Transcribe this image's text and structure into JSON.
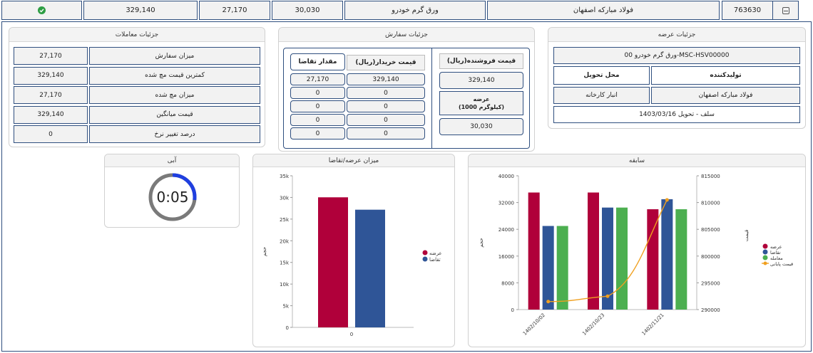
{
  "top_bar": {
    "code": "763630",
    "producer": "فولاد مبارکه اصفهان",
    "product": "ورق گرم خودرو",
    "value_a": "30,030",
    "value_b": "27,170",
    "value_c": "329,140",
    "status_color": "#2e9e44"
  },
  "offer_details": {
    "title": "جزئیات عرضه",
    "product_line": "ورق گرم خودرو 00-MSC-HSV00000",
    "producer_label": "تولیدکننده",
    "delivery_label": "محل تحویل",
    "producer_value": "فولاد مبارکه اصفهان",
    "delivery_value": "انبار کارخانه",
    "settlement": "سلف - تحویل 1403/03/16"
  },
  "order_details": {
    "title": "جزئیات سفارش",
    "seller_price_header": "قیمت فروشنده(ریال)",
    "seller_price_value": "329,140",
    "supply_label_line1": "عرضه",
    "supply_label_line2": "(1000 کیلوگرم)",
    "supply_value": "30,030",
    "buyer_price_header": "قیمت خریدار(ریال)",
    "demand_qty_header": "مقدار تقاضا",
    "rows": [
      {
        "price": "329,140",
        "qty": "27,170"
      },
      {
        "price": "0",
        "qty": "0"
      },
      {
        "price": "0",
        "qty": "0"
      },
      {
        "price": "0",
        "qty": "0"
      },
      {
        "price": "0",
        "qty": "0"
      }
    ]
  },
  "trade_details": {
    "title": "جزئیات معاملات",
    "rows": [
      {
        "label": "میزان سفارش",
        "value": "27,170"
      },
      {
        "label": "کمترین قیمت مچ شده",
        "value": "329,140"
      },
      {
        "label": "میزان مچ شده",
        "value": "27,170"
      },
      {
        "label": "قیمت میانگین",
        "value": "329,140"
      },
      {
        "label": "درصد تغییر نرخ",
        "value": "0"
      }
    ]
  },
  "timer": {
    "title": "آبی",
    "display": "0:05",
    "progress": 0.27,
    "ring_color": "#1f3fe0",
    "track_color": "#7a7a7a"
  },
  "chart_data": [
    {
      "type": "bar",
      "title": "میزان عرضه/تقاضا",
      "ylabel": "حجم",
      "categories": [
        "0"
      ],
      "series": [
        {
          "name": "عرضه",
          "values": [
            30030
          ],
          "color": "#b0003a"
        },
        {
          "name": "تقاضا",
          "values": [
            27170
          ],
          "color": "#2f5597"
        }
      ],
      "ylim": [
        0,
        35000
      ],
      "yticks": [
        0,
        5000,
        10000,
        15000,
        20000,
        25000,
        30000,
        35000
      ],
      "ytick_labels": [
        "0",
        "5k",
        "10k",
        "15k",
        "20k",
        "25k",
        "30k",
        "35k"
      ],
      "grid": false,
      "legend": "right"
    },
    {
      "type": "bar",
      "title": "سابقه",
      "ylabel": "حجم",
      "y2label": "قیمت",
      "categories": [
        "1402/10/02",
        "1402/10/23",
        "1402/11/21"
      ],
      "series": [
        {
          "name": "عرضه",
          "values": [
            35000,
            35000,
            30000
          ],
          "color": "#b0003a"
        },
        {
          "name": "تقاضا",
          "values": [
            25000,
            30500,
            33000
          ],
          "color": "#2f5597"
        },
        {
          "name": "معامله",
          "values": [
            25000,
            30500,
            30000
          ],
          "color": "#4caf50"
        }
      ],
      "line_series": {
        "name": "قیمت پایانی",
        "values": [
          291500,
          292500,
          810500
        ],
        "color": "#f0a020",
        "axis": "right"
      },
      "ylim": [
        0,
        40000
      ],
      "yticks": [
        0,
        8000,
        16000,
        24000,
        32000,
        40000
      ],
      "y2lim": [
        290000,
        815000
      ],
      "y2ticks": [
        290000,
        295000,
        800000,
        805000,
        810000,
        815000
      ],
      "grid": false,
      "legend": "right"
    }
  ]
}
